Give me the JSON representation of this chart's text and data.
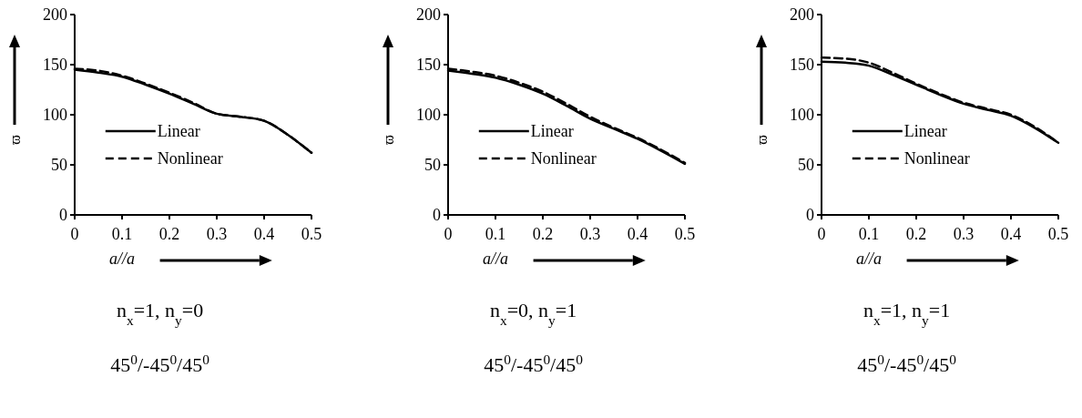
{
  "chart_data": [
    {
      "type": "line",
      "xlabel": "a//a",
      "ylabel": "ϖ",
      "x": [
        0,
        0.05,
        0.1,
        0.15,
        0.2,
        0.25,
        0.3,
        0.35,
        0.4,
        0.45,
        0.5
      ],
      "xlim": [
        0,
        0.5
      ],
      "xticks": [
        0,
        0.1,
        0.2,
        0.3,
        0.4,
        0.5
      ],
      "ylim": [
        0,
        200
      ],
      "yticks": [
        0,
        50,
        100,
        150,
        200
      ],
      "legend": "bottom left",
      "grid": false,
      "marker": "none",
      "series": [
        {
          "name": "Linear",
          "color": "#000000",
          "line_style": "solid",
          "values": [
            145,
            142,
            138,
            130,
            121,
            111,
            101,
            98,
            94,
            80,
            62
          ]
        },
        {
          "name": "Nonlinear",
          "color": "#000000",
          "line_style": "dashed",
          "values": [
            146,
            144,
            139,
            131,
            122,
            112,
            101,
            98,
            94,
            80,
            62
          ]
        }
      ],
      "annotations": [
        "n$_{x}$=1, n$_{y}$=0",
        "45$^{0}$/-45$^{0}$/45$^{0}$"
      ]
    },
    {
      "type": "line",
      "xlabel": "a//a",
      "ylabel": "ϖ",
      "x": [
        0,
        0.05,
        0.1,
        0.15,
        0.2,
        0.25,
        0.3,
        0.35,
        0.4,
        0.45,
        0.5
      ],
      "xlim": [
        0,
        0.5
      ],
      "xticks": [
        0,
        0.1,
        0.2,
        0.3,
        0.4,
        0.5
      ],
      "ylim": [
        0,
        200
      ],
      "yticks": [
        0,
        50,
        100,
        150,
        200
      ],
      "legend": "bottom left",
      "grid": false,
      "marker": "none",
      "series": [
        {
          "name": "Linear",
          "color": "#000000",
          "line_style": "solid",
          "values": [
            144,
            141,
            137,
            130,
            121,
            109,
            96,
            86,
            76,
            64,
            51
          ]
        },
        {
          "name": "Nonlinear",
          "color": "#000000",
          "line_style": "dashed",
          "values": [
            146,
            143,
            139,
            132,
            123,
            111,
            98,
            87,
            77,
            65,
            52
          ]
        }
      ],
      "annotations": [
        "n$_{x}$=0, n$_{y}$=1",
        "45$^{0}$/-45$^{0}$/45$^{0}$"
      ]
    },
    {
      "type": "line",
      "xlabel": "a//a",
      "ylabel": "ϖ",
      "x": [
        0,
        0.05,
        0.1,
        0.15,
        0.2,
        0.25,
        0.3,
        0.35,
        0.4,
        0.45,
        0.5
      ],
      "xlim": [
        0,
        0.5
      ],
      "xticks": [
        0,
        0.1,
        0.2,
        0.3,
        0.4,
        0.5
      ],
      "ylim": [
        0,
        200
      ],
      "yticks": [
        0,
        50,
        100,
        150,
        200
      ],
      "legend": "bottom left",
      "grid": false,
      "marker": "none",
      "series": [
        {
          "name": "Linear",
          "color": "#000000",
          "line_style": "solid",
          "values": [
            153,
            152,
            149,
            140,
            130,
            120,
            111,
            105,
            99,
            87,
            72
          ]
        },
        {
          "name": "Nonlinear",
          "color": "#000000",
          "line_style": "dashed",
          "values": [
            157,
            156,
            152,
            142,
            131,
            121,
            112,
            106,
            100,
            88,
            72
          ]
        }
      ],
      "annotations": [
        "n$_{x}$=1, n$_{y}$=1",
        "45$^{0}$/-45$^{0}$/45$^{0}$"
      ]
    }
  ]
}
